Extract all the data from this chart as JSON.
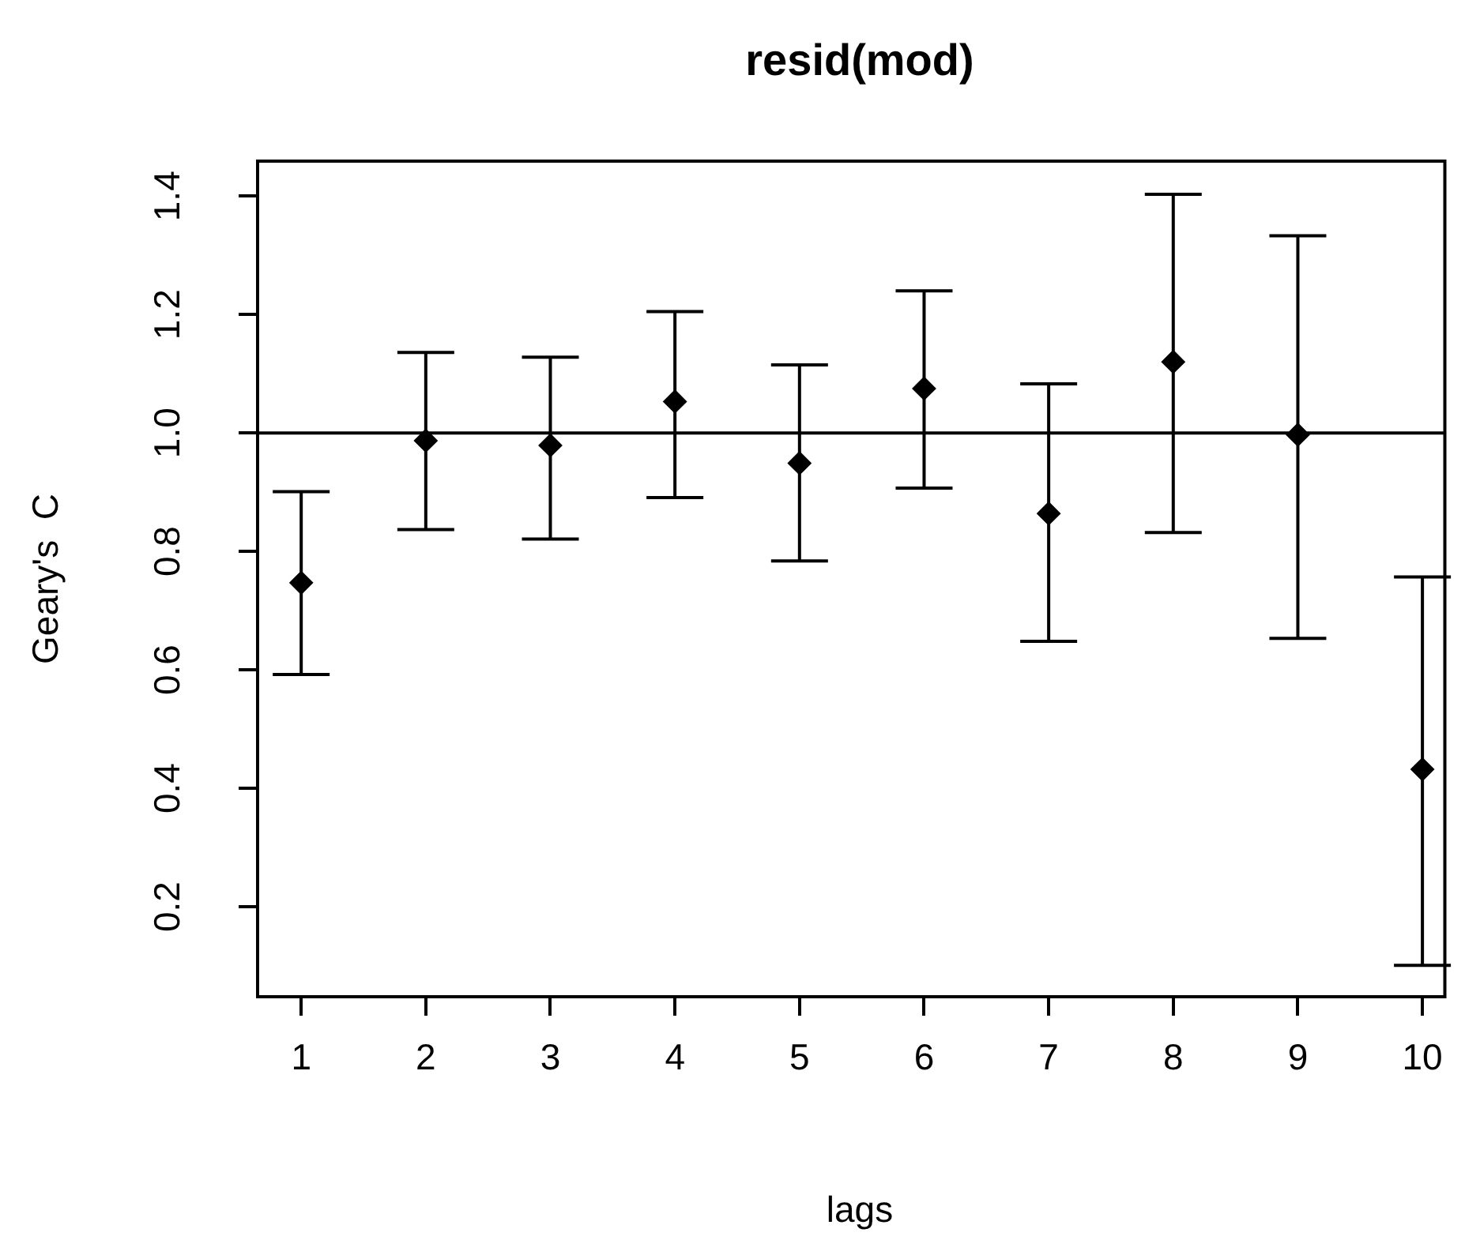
{
  "chart_data": {
    "type": "scatter",
    "title": "resid(mod)",
    "xlabel": "lags",
    "ylabel": "Geary's  C",
    "x": [
      1,
      2,
      3,
      4,
      5,
      6,
      7,
      8,
      9,
      10
    ],
    "values": [
      0.747,
      0.987,
      0.979,
      1.053,
      0.949,
      1.075,
      0.864,
      1.12,
      0.997,
      0.432
    ],
    "errors": [
      [
        0.592,
        0.901
      ],
      [
        0.837,
        1.136
      ],
      [
        0.821,
        1.128
      ],
      [
        0.891,
        1.205
      ],
      [
        0.784,
        1.115
      ],
      [
        0.907,
        1.24
      ],
      [
        0.648,
        1.083
      ],
      [
        0.832,
        1.403
      ],
      [
        0.653,
        1.333
      ],
      [
        0.101,
        0.757
      ]
    ],
    "color": "#000000",
    "marker": "diamond",
    "xlim": [
      0.65,
      10.18
    ],
    "xticks": [
      1,
      2,
      3,
      4,
      5,
      6,
      7,
      8,
      9,
      10
    ],
    "ylim": [
      0.048,
      1.459
    ],
    "yticks": [
      0.2,
      0.4,
      0.6,
      0.8,
      {
        "value": 1,
        "label": "1.0"
      },
      1.2,
      1.4
    ],
    "ref_lines": [
      {
        "axis": "y",
        "value": 1.0,
        "color": "#000000"
      }
    ],
    "grid": false,
    "legend": false
  }
}
